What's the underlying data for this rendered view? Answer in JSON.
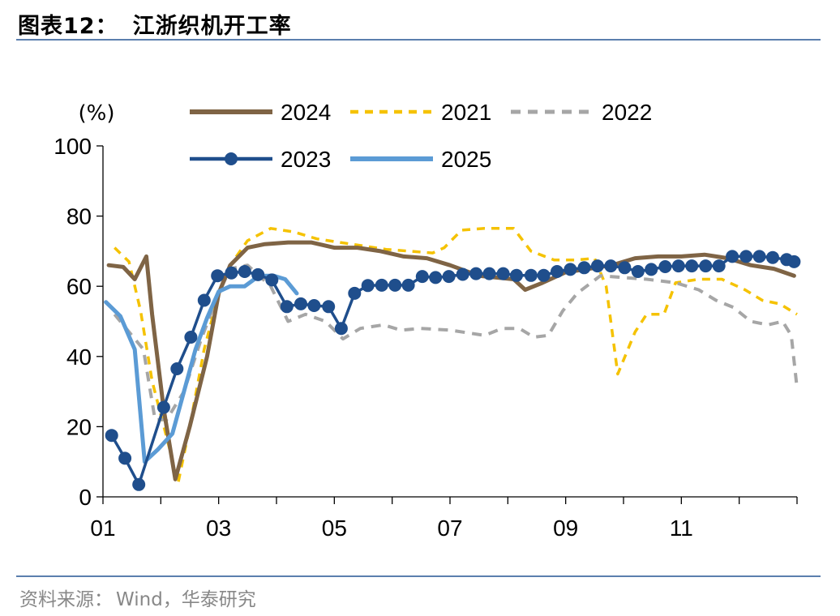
{
  "header": {
    "figure_no": "图表12：",
    "title": "江浙织机开工率"
  },
  "footer": {
    "source_label": "资料来源：",
    "source_text": "Wind，华泰研究"
  },
  "chart_data": {
    "type": "line",
    "ylabel": "(%)",
    "ylim": [
      0,
      100
    ],
    "yticks": [
      0,
      20,
      40,
      60,
      80,
      100
    ],
    "xlim": [
      1,
      13
    ],
    "xticks": [
      1,
      3,
      5,
      7,
      9,
      11
    ],
    "xticklabels": [
      "01",
      "03",
      "05",
      "07",
      "09",
      "11"
    ],
    "legend_position": "top",
    "series": [
      {
        "name": "2024",
        "color": "#7f6445",
        "style": "solid",
        "markers": false,
        "points": [
          [
            1.1,
            66
          ],
          [
            1.35,
            65.5
          ],
          [
            1.55,
            62
          ],
          [
            1.75,
            68.5
          ],
          [
            1.85,
            52
          ],
          [
            2.05,
            25
          ],
          [
            2.25,
            5
          ],
          [
            2.5,
            20
          ],
          [
            2.8,
            40
          ],
          [
            3.0,
            58
          ],
          [
            3.2,
            66
          ],
          [
            3.5,
            71
          ],
          [
            3.8,
            72
          ],
          [
            4.2,
            72.5
          ],
          [
            4.6,
            72.5
          ],
          [
            5.0,
            71
          ],
          [
            5.4,
            71
          ],
          [
            5.8,
            70
          ],
          [
            6.2,
            68.5
          ],
          [
            6.6,
            68
          ],
          [
            7.0,
            66
          ],
          [
            7.5,
            63
          ],
          [
            8.1,
            62
          ],
          [
            8.3,
            59
          ],
          [
            8.6,
            61
          ],
          [
            9.0,
            64
          ],
          [
            9.4,
            65
          ],
          [
            9.8,
            66
          ],
          [
            10.2,
            68
          ],
          [
            10.6,
            68.5
          ],
          [
            11.0,
            68.5
          ],
          [
            11.4,
            69
          ],
          [
            11.8,
            68
          ],
          [
            12.2,
            66
          ],
          [
            12.6,
            65
          ],
          [
            12.95,
            63
          ]
        ]
      },
      {
        "name": "2021",
        "color": "#f5c200",
        "style": "dashed",
        "markers": false,
        "points": [
          [
            1.2,
            71
          ],
          [
            1.45,
            67
          ],
          [
            1.65,
            53
          ],
          [
            1.85,
            33
          ],
          [
            2.1,
            17
          ],
          [
            2.3,
            4
          ],
          [
            2.5,
            20
          ],
          [
            2.75,
            42
          ],
          [
            3.0,
            58
          ],
          [
            3.2,
            66
          ],
          [
            3.5,
            73
          ],
          [
            3.9,
            76.5
          ],
          [
            4.3,
            75.5
          ],
          [
            4.7,
            73.5
          ],
          [
            5.1,
            72.5
          ],
          [
            5.5,
            71.5
          ],
          [
            5.9,
            70.5
          ],
          [
            6.3,
            70
          ],
          [
            6.7,
            69.5
          ],
          [
            6.9,
            71
          ],
          [
            7.2,
            76
          ],
          [
            7.6,
            76.5
          ],
          [
            8.1,
            76.5
          ],
          [
            8.4,
            70
          ],
          [
            8.8,
            67.5
          ],
          [
            9.2,
            67.5
          ],
          [
            9.5,
            68
          ],
          [
            9.7,
            60
          ],
          [
            9.9,
            35
          ],
          [
            10.2,
            47
          ],
          [
            10.4,
            52
          ],
          [
            10.7,
            52
          ],
          [
            10.9,
            61
          ],
          [
            11.3,
            62
          ],
          [
            11.7,
            62
          ],
          [
            12.1,
            59
          ],
          [
            12.4,
            56
          ],
          [
            12.7,
            55
          ],
          [
            13.0,
            52
          ]
        ]
      },
      {
        "name": "2022",
        "color": "#a6a6a6",
        "style": "dashed",
        "markers": false,
        "points": [
          [
            1.2,
            52
          ],
          [
            1.45,
            47
          ],
          [
            1.7,
            42
          ],
          [
            1.9,
            22
          ],
          [
            2.1,
            22
          ],
          [
            2.4,
            30
          ],
          [
            2.7,
            45
          ],
          [
            3.0,
            58
          ],
          [
            3.2,
            65
          ],
          [
            3.5,
            66
          ],
          [
            3.9,
            60
          ],
          [
            4.2,
            50
          ],
          [
            4.5,
            52
          ],
          [
            4.85,
            50
          ],
          [
            5.15,
            45
          ],
          [
            5.45,
            48
          ],
          [
            5.85,
            49
          ],
          [
            6.15,
            47.5
          ],
          [
            6.5,
            48
          ],
          [
            7.0,
            47.5
          ],
          [
            7.6,
            46
          ],
          [
            7.9,
            48
          ],
          [
            8.2,
            48
          ],
          [
            8.45,
            45.5
          ],
          [
            8.7,
            46
          ],
          [
            8.95,
            53
          ],
          [
            9.2,
            58
          ],
          [
            9.6,
            63
          ],
          [
            10.0,
            62.5
          ],
          [
            10.4,
            62
          ],
          [
            10.9,
            61
          ],
          [
            11.3,
            59
          ],
          [
            11.6,
            56
          ],
          [
            11.9,
            54
          ],
          [
            12.2,
            50
          ],
          [
            12.5,
            49
          ],
          [
            12.75,
            50
          ],
          [
            12.9,
            46
          ],
          [
            13.0,
            31
          ]
        ]
      },
      {
        "name": "2023",
        "color": "#1f4e8c",
        "style": "solid",
        "markers": true,
        "points": [
          [
            1.15,
            17.5
          ],
          [
            1.38,
            11
          ],
          [
            1.62,
            3.5
          ],
          [
            2.05,
            25.5
          ],
          [
            2.28,
            36.5
          ],
          [
            2.52,
            45.5
          ],
          [
            2.75,
            56
          ],
          [
            2.98,
            63
          ],
          [
            3.22,
            63.8
          ],
          [
            3.45,
            64.2
          ],
          [
            3.68,
            63.3
          ],
          [
            3.92,
            61.8
          ],
          [
            4.18,
            54.2
          ],
          [
            4.42,
            55
          ],
          [
            4.65,
            54.5
          ],
          [
            4.9,
            54.2
          ],
          [
            5.12,
            48
          ],
          [
            5.35,
            58
          ],
          [
            5.58,
            60.2
          ],
          [
            5.82,
            60.3
          ],
          [
            6.05,
            60.3
          ],
          [
            6.28,
            60.3
          ],
          [
            6.52,
            62.8
          ],
          [
            6.75,
            62.5
          ],
          [
            6.98,
            62.8
          ],
          [
            7.22,
            63.4
          ],
          [
            7.45,
            63.6
          ],
          [
            7.68,
            63.6
          ],
          [
            7.92,
            63.6
          ],
          [
            8.15,
            63.1
          ],
          [
            8.4,
            63.1
          ],
          [
            8.62,
            63.1
          ],
          [
            8.85,
            64.2
          ],
          [
            9.08,
            64.8
          ],
          [
            9.32,
            65.3
          ],
          [
            9.55,
            65.8
          ],
          [
            9.78,
            65.8
          ],
          [
            10.02,
            65.3
          ],
          [
            10.25,
            64.2
          ],
          [
            10.48,
            64.8
          ],
          [
            10.72,
            65.6
          ],
          [
            10.95,
            65.8
          ],
          [
            11.18,
            65.8
          ],
          [
            11.42,
            65.8
          ],
          [
            11.65,
            65.8
          ],
          [
            11.88,
            68.5
          ],
          [
            12.12,
            68.5
          ],
          [
            12.35,
            68.5
          ],
          [
            12.58,
            68.2
          ],
          [
            12.82,
            67.6
          ],
          [
            12.95,
            67
          ]
        ]
      },
      {
        "name": "2025",
        "color": "#5b9bd5",
        "style": "solid",
        "markers": false,
        "points": [
          [
            1.05,
            55.5
          ],
          [
            1.3,
            51.5
          ],
          [
            1.55,
            42
          ],
          [
            1.72,
            10
          ],
          [
            1.95,
            13.5
          ],
          [
            2.2,
            18
          ],
          [
            2.4,
            30
          ],
          [
            2.6,
            42
          ],
          [
            2.8,
            51
          ],
          [
            3.0,
            58.5
          ],
          [
            3.2,
            60
          ],
          [
            3.45,
            60
          ],
          [
            3.7,
            63
          ],
          [
            3.95,
            63
          ],
          [
            4.15,
            62
          ],
          [
            4.35,
            58
          ]
        ]
      }
    ]
  }
}
